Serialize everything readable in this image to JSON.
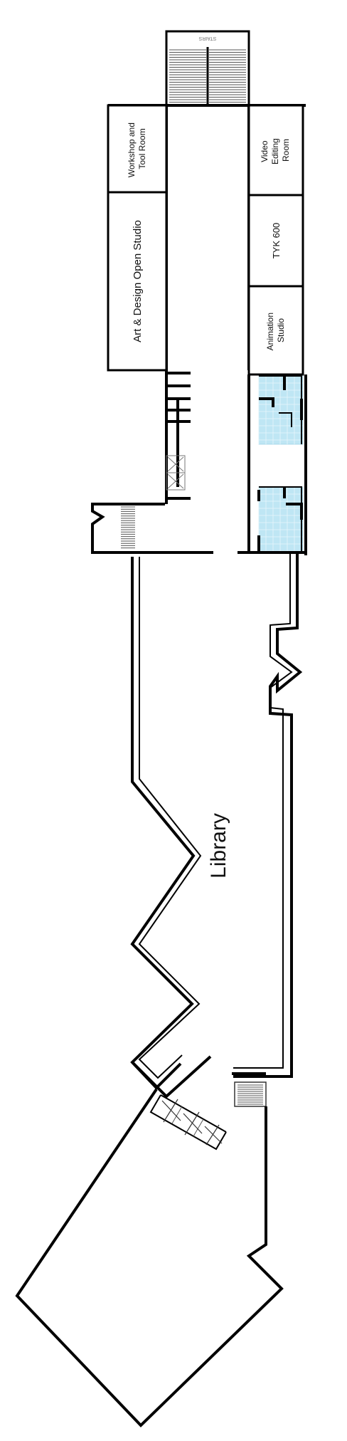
{
  "rooms": {
    "workshop": [
      "Workshop and",
      "Tool Room"
    ],
    "art_design": "Art & Design Open Studio",
    "video_editing": [
      "Video",
      "Editing",
      "Room"
    ],
    "tyk600": "TYK 600",
    "animation": [
      "Animation",
      "Studio"
    ],
    "library": "Library"
  },
  "stairs_label": "STAIRS"
}
